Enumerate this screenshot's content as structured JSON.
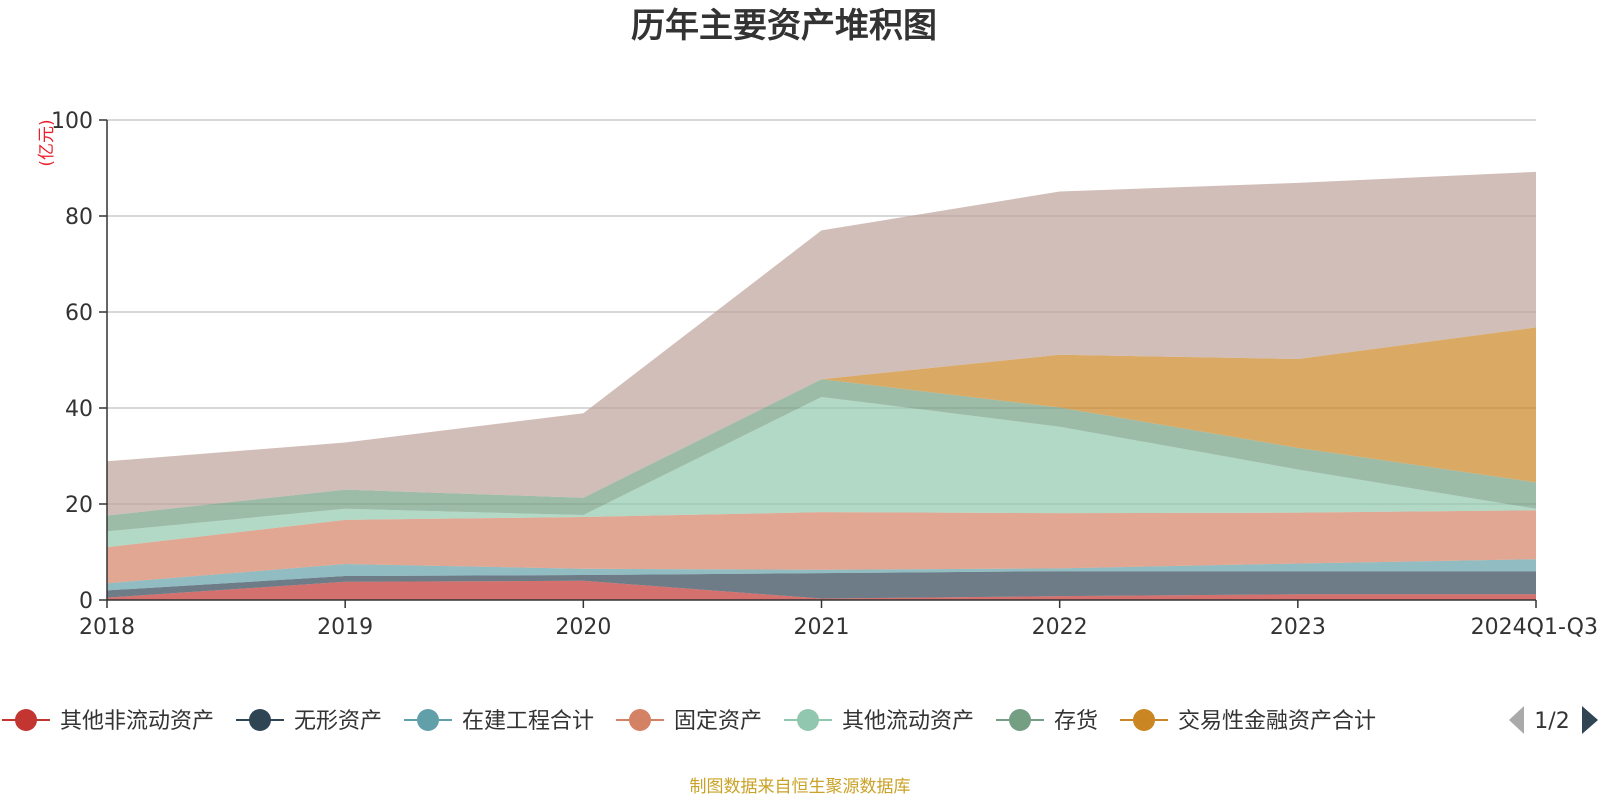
{
  "chart_data": {
    "type": "area",
    "stacked": true,
    "title": "历年主要资产堆积图",
    "unit_label": "(亿元)",
    "categories": [
      "2018",
      "2019",
      "2020",
      "2021",
      "2022",
      "2023",
      "2024Q1-Q3"
    ],
    "ylim": [
      0,
      100
    ],
    "yticks": [
      0,
      20,
      40,
      60,
      80,
      100
    ],
    "grid": true,
    "legend_position": "bottom",
    "series": [
      {
        "name": "其他非流动资产",
        "color": "#c23531",
        "values": [
          0.5,
          3.8,
          4.0,
          0.3,
          0.8,
          1.2,
          1.2
        ]
      },
      {
        "name": "无形资产",
        "color": "#2f4554",
        "values": [
          1.5,
          1.2,
          1.2,
          5.3,
          5.2,
          4.8,
          4.8
        ]
      },
      {
        "name": "在建工程合计",
        "color": "#61a0a8",
        "values": [
          1.5,
          2.5,
          1.3,
          0.7,
          0.6,
          1.6,
          2.5
        ]
      },
      {
        "name": "固定资产",
        "color": "#d48265",
        "values": [
          7.5,
          9.2,
          10.8,
          12.0,
          11.5,
          10.6,
          10.2
        ]
      },
      {
        "name": "其他流动资产",
        "color": "#91c7ae",
        "values": [
          3.3,
          2.3,
          0.4,
          24.0,
          18.0,
          9.0,
          0.3
        ]
      },
      {
        "name": "存货",
        "color": "#749f83",
        "values": [
          3.3,
          4.0,
          3.6,
          3.7,
          4.0,
          4.5,
          5.5
        ]
      },
      {
        "name": "交易性金融资产合计",
        "color": "#ca8622",
        "values": [
          0,
          0,
          0,
          0,
          11.0,
          18.5,
          32.3
        ]
      },
      {
        "name": "",
        "color": "#bda29a",
        "values": [
          11.3,
          9.8,
          17.6,
          31.0,
          34.0,
          36.7,
          32.4
        ]
      }
    ]
  },
  "legend": {
    "page": "1/2",
    "prev_icon": "triangle-left-icon",
    "next_icon": "triangle-right-icon"
  },
  "footer": {
    "source": "制图数据来自恒生聚源数据库"
  }
}
